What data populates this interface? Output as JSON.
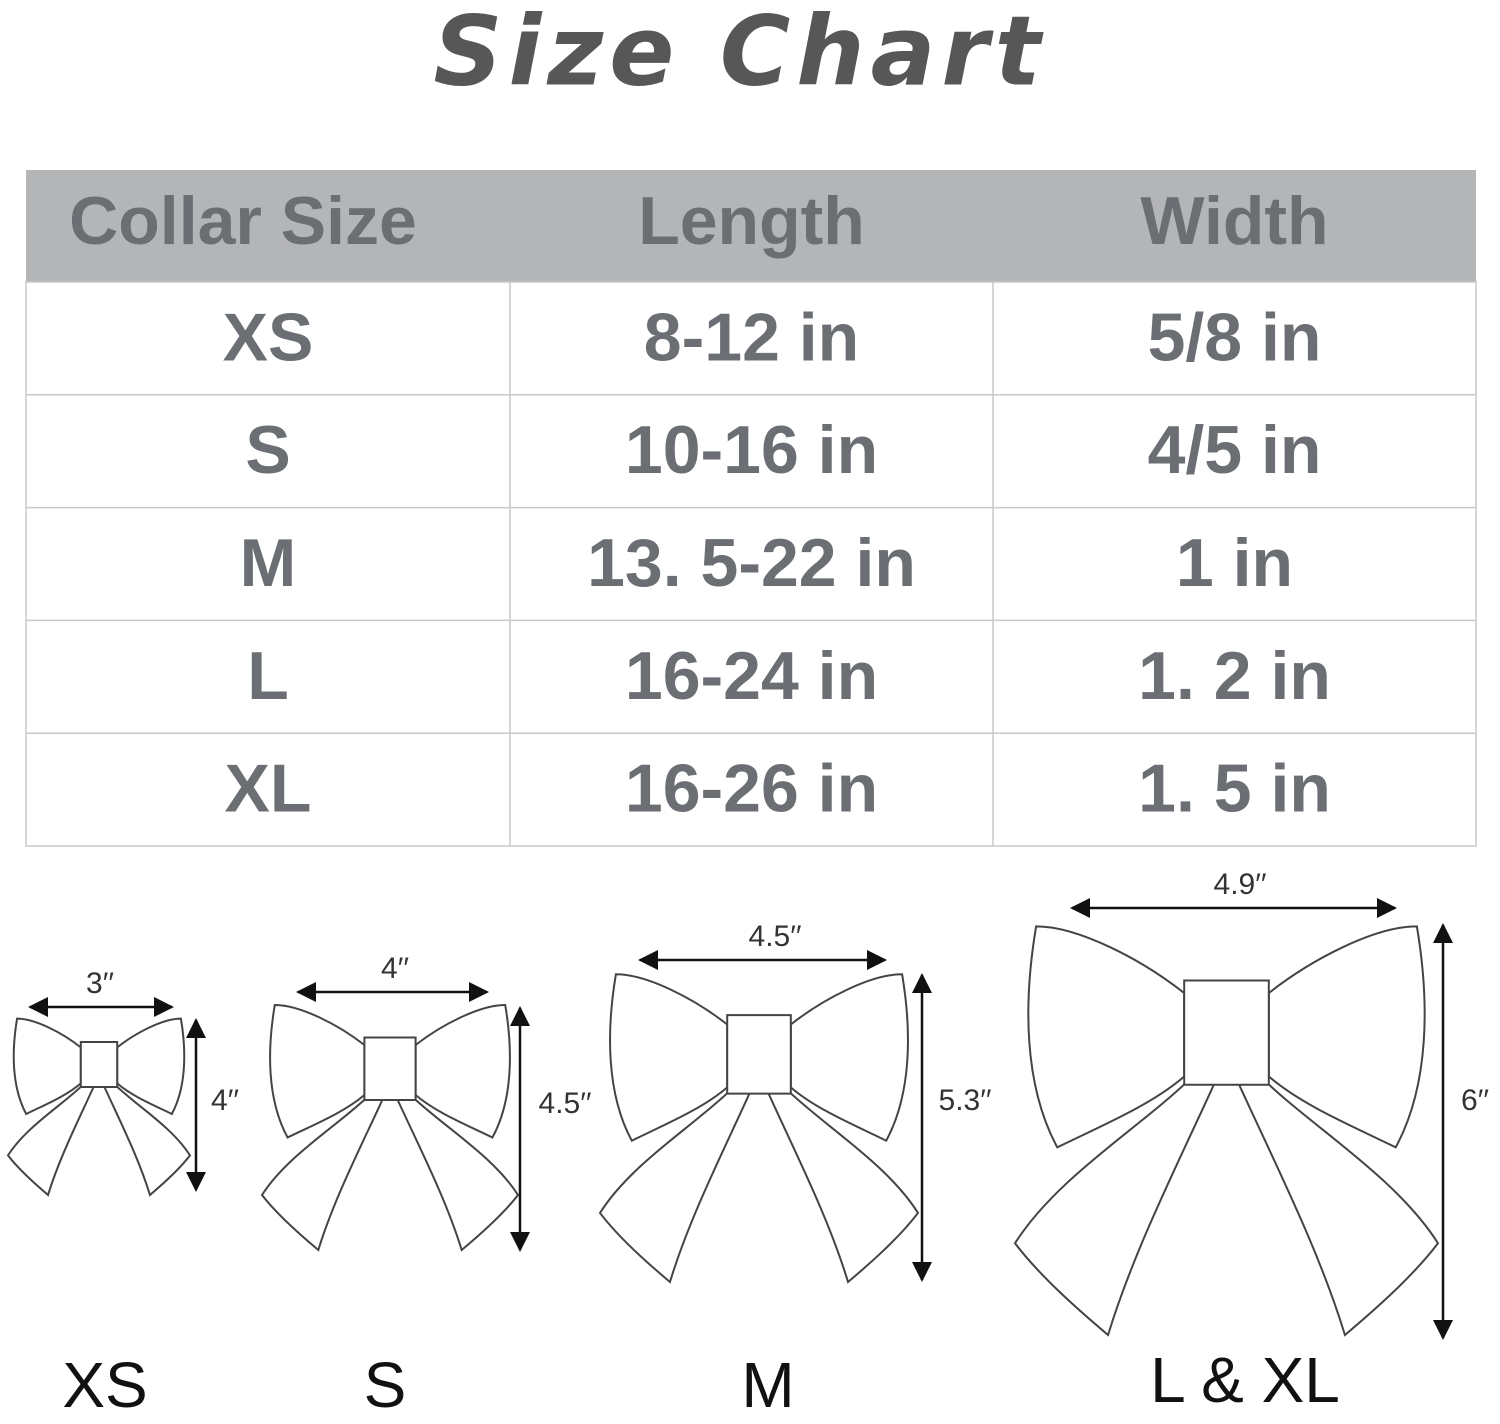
{
  "title": "Size Chart",
  "table": {
    "headers": [
      "Collar Size",
      "Length",
      "Width"
    ],
    "rows": [
      [
        "XS",
        "8-12 in",
        "5/8 in"
      ],
      [
        "S",
        "10-16 in",
        "4/5 in"
      ],
      [
        "M",
        "13. 5-22 in",
        "1 in"
      ],
      [
        "L",
        "16-24 in",
        "1. 2 in"
      ],
      [
        "XL",
        "16-26 in",
        "1. 5 in"
      ]
    ]
  },
  "bows": [
    {
      "label": "XS",
      "width": "3′′",
      "height": "4′′"
    },
    {
      "label": "S",
      "width": "4′′",
      "height": "4.5′′"
    },
    {
      "label": "M",
      "width": "4.5′′",
      "height": "5.3′′"
    },
    {
      "label": "L & XL",
      "width": "4.9′′",
      "height": "6′′"
    }
  ]
}
